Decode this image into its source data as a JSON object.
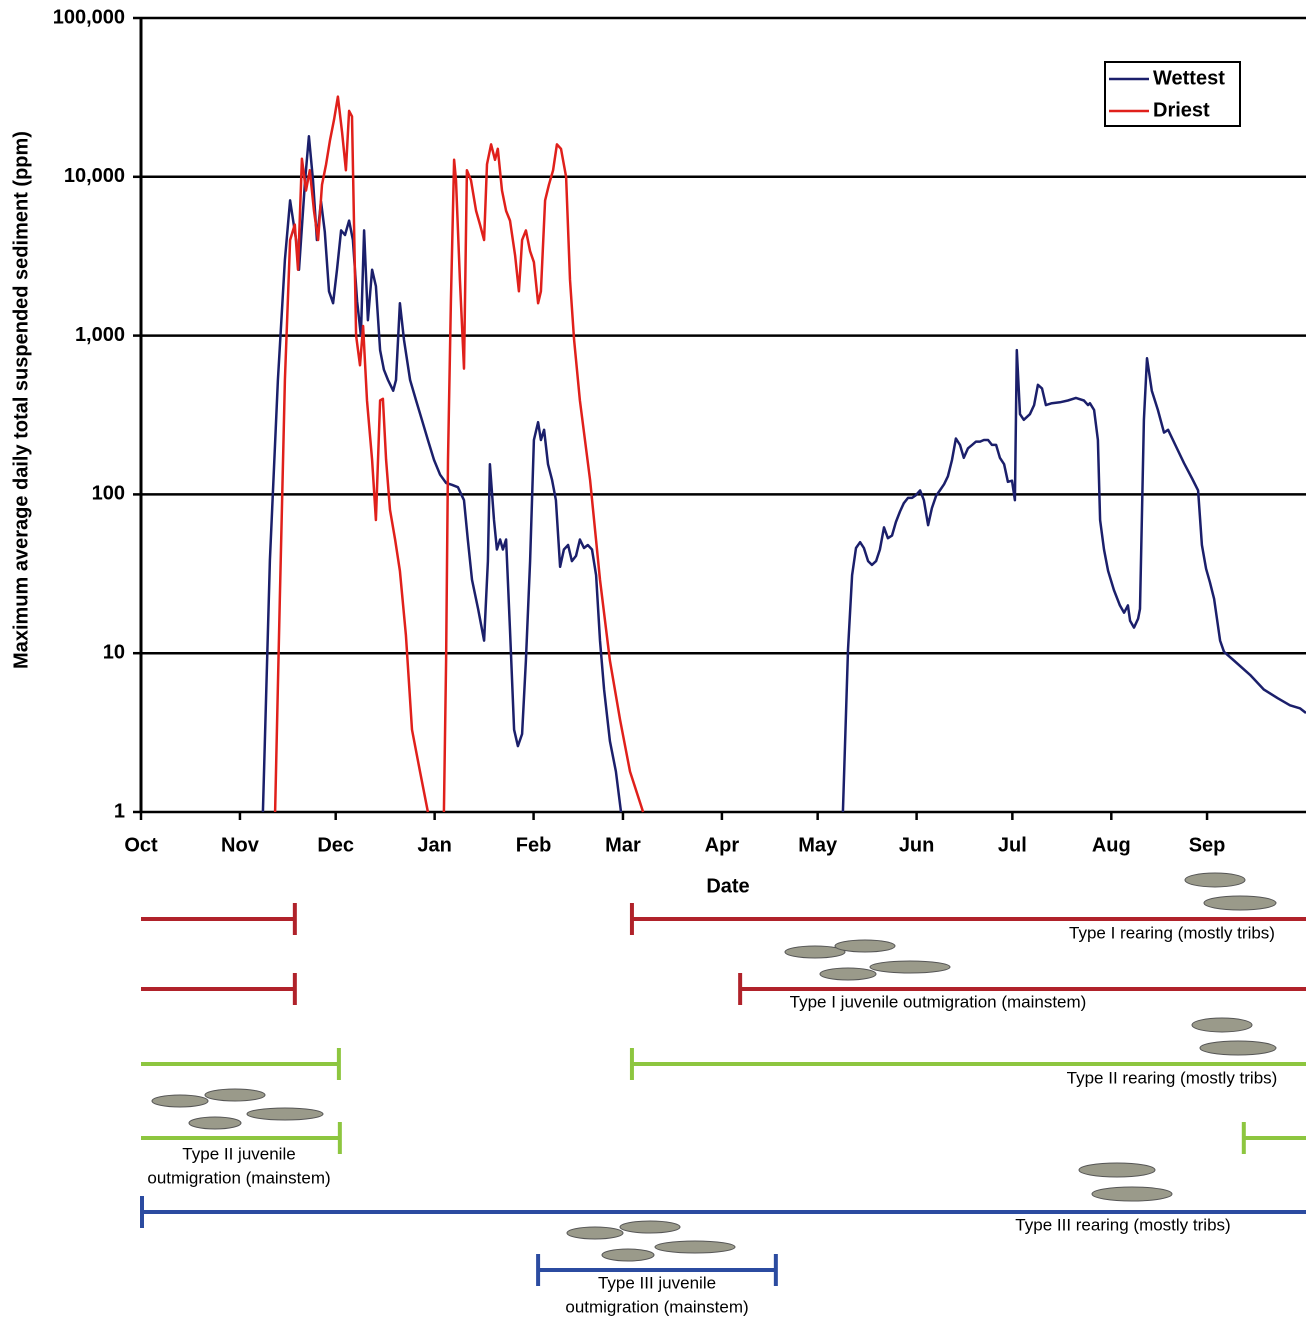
{
  "chart_data": {
    "type": "line",
    "y_label": "Maximum average daily total suspended sediment (ppm)",
    "x_label": "Date",
    "yscale": "log",
    "grid": true,
    "legend": "upper right",
    "xlim": [
      0,
      365
    ],
    "xticks": [
      {
        "value": 0,
        "label": "Oct"
      },
      {
        "value": 31,
        "label": "Nov"
      },
      {
        "value": 61,
        "label": "Dec"
      },
      {
        "value": 92,
        "label": "Jan"
      },
      {
        "value": 123,
        "label": "Feb"
      },
      {
        "value": 151,
        "label": "Mar"
      },
      {
        "value": 182,
        "label": "Apr"
      },
      {
        "value": 212,
        "label": "May"
      },
      {
        "value": 243,
        "label": "Jun"
      },
      {
        "value": 273,
        "label": "Jul"
      },
      {
        "value": 304,
        "label": "Aug"
      },
      {
        "value": 334,
        "label": "Sep"
      }
    ],
    "ylim": [
      1,
      100000
    ],
    "yticks": [
      {
        "value": 100000,
        "label": "100,000"
      },
      {
        "value": 10000,
        "label": "10,000"
      },
      {
        "value": 1000,
        "label": "1,000"
      },
      100,
      10,
      1
    ],
    "series": [
      {
        "name": "Wettest",
        "color": "#1b1f6b",
        "x": [
          38.2,
          40.4,
          42.9,
          45.1,
          46.7,
          48.6,
          49.5,
          51.4,
          52.6,
          53.9,
          55.1,
          56.4,
          57.6,
          58.9,
          60.2,
          61.4,
          62.7,
          63.9,
          65.2,
          66.4,
          67.7,
          68.9,
          69.9,
          71.1,
          72.4,
          73.6,
          74.9,
          76.1,
          77.4,
          79.0,
          79.9,
          81.1,
          82.4,
          84.3,
          86.2,
          88.0,
          89.9,
          91.8,
          93.7,
          95.6,
          97.4,
          99.3,
          101.2,
          102.4,
          103.7,
          105.6,
          107.5,
          108.7,
          109.3,
          110.6,
          111.5,
          112.5,
          113.4,
          114.4,
          115.6,
          116.9,
          118.1,
          119.4,
          120.6,
          121.9,
          123.1,
          124.4,
          125.3,
          126.3,
          127.5,
          128.8,
          130.0,
          131.3,
          132.5,
          133.8,
          135.0,
          136.3,
          137.5,
          138.8,
          140.0,
          141.3,
          142.6,
          143.8,
          145.1,
          146.9,
          148.8,
          150.4,
          185,
          219.9,
          221.5,
          222.8,
          224.0,
          225.3,
          226.5,
          227.8,
          229.0,
          230.3,
          231.5,
          232.8,
          234.0,
          235.3,
          236.5,
          237.8,
          239.0,
          240.3,
          241.6,
          242.8,
          244.1,
          245.3,
          246.6,
          247.8,
          249.1,
          250.3,
          251.6,
          252.8,
          254.1,
          255.3,
          256.6,
          257.8,
          259.1,
          260.4,
          261.6,
          262.9,
          264.1,
          265.4,
          266.6,
          267.9,
          269.1,
          270.4,
          271.6,
          272.9,
          273.8,
          274.4,
          275.4,
          276.6,
          278.5,
          279.8,
          281.0,
          282.3,
          283.5,
          285.4,
          287.9,
          290.4,
          292.9,
          295.4,
          296.7,
          297.3,
          298.6,
          299.8,
          300.5,
          301.7,
          303.0,
          304.8,
          306.7,
          308.0,
          309.2,
          309.9,
          311.1,
          312.4,
          313.0,
          314.2,
          315.2,
          316.7,
          318.6,
          320.5,
          321.8,
          324.3,
          326.8,
          329.3,
          331.2,
          332.4,
          333.7,
          334.9,
          336.2,
          338.1,
          339.3,
          342.4,
          347.5,
          351.8,
          356.2,
          360.0,
          363.1,
          365.0
        ],
        "values": [
          1,
          38.6,
          525,
          3000,
          7100,
          4000,
          2600,
          9500,
          18000,
          9500,
          4000,
          7000,
          4500,
          1900,
          1600,
          2600,
          4600,
          4300,
          5300,
          4000,
          1650,
          1000,
          4600,
          1250,
          2600,
          2050,
          810,
          610,
          525,
          450,
          525,
          1600,
          940,
          525,
          390,
          295,
          220,
          165,
          133,
          118,
          115,
          111,
          92,
          52,
          29,
          19,
          12,
          38,
          155,
          69,
          45,
          52,
          45,
          52,
          14,
          3.3,
          2.6,
          3.1,
          9,
          38,
          220,
          285,
          220,
          255,
          155,
          123,
          92,
          35,
          45,
          48,
          38,
          41,
          52,
          46,
          48,
          45,
          31,
          12,
          5.9,
          2.8,
          1.8,
          1,
          null,
          1,
          10.5,
          31,
          46,
          50,
          46,
          38,
          36,
          38,
          45,
          62,
          53,
          55,
          67,
          78,
          88,
          95,
          95,
          99,
          106,
          92,
          64,
          82,
          98,
          106,
          116,
          130,
          165,
          225,
          205,
          170,
          195,
          205,
          215,
          215,
          220,
          220,
          205,
          205,
          170,
          155,
          120,
          122,
          92,
          810,
          320,
          295,
          320,
          365,
          490,
          465,
          365,
          375,
          380,
          390,
          405,
          390,
          365,
          375,
          340,
          220,
          69,
          45,
          33,
          25,
          20,
          18,
          20,
          16,
          14.5,
          16.5,
          19,
          295,
          720,
          450,
          340,
          245,
          255,
          200,
          157,
          126,
          106,
          48,
          34,
          28,
          22,
          12,
          10.2,
          9,
          7.3,
          5.9,
          5.2,
          4.7,
          4.5,
          4.2
        ]
      },
      {
        "name": "Driest",
        "color": "#e0201b",
        "x": [
          42.0,
          43.5,
          45.1,
          46.7,
          48.2,
          49.2,
          50.4,
          51.7,
          52.9,
          54.2,
          55.5,
          56.7,
          58.0,
          59.2,
          60.5,
          61.7,
          63.0,
          64.2,
          65.2,
          66.1,
          67.4,
          68.6,
          69.6,
          70.8,
          72.4,
          73.6,
          74.9,
          75.8,
          76.8,
          78.0,
          79.6,
          81.1,
          83.0,
          84.9,
          87.4,
          89.9,
          90.9,
          94.9,
          95.6,
          96.2,
          97.1,
          98.1,
          98.7,
          99.9,
          101.2,
          102.1,
          103.4,
          105.0,
          106.2,
          107.5,
          108.4,
          109.7,
          110.9,
          111.8,
          113.1,
          114.4,
          115.6,
          117.2,
          118.4,
          119.4,
          120.6,
          121.9,
          123.1,
          124.4,
          125.3,
          126.6,
          127.8,
          129.1,
          130.3,
          131.6,
          133.2,
          134.4,
          135.7,
          137.5,
          140.7,
          143.8,
          146.9,
          150.1,
          153.2,
          157.3
        ],
        "values": [
          1,
          21.6,
          525,
          4000,
          5000,
          2600,
          13000,
          8200,
          11000,
          6100,
          4000,
          8900,
          12000,
          17000,
          23000,
          32000,
          19000,
          11000,
          26000,
          24000,
          1000,
          650,
          1150,
          390,
          165,
          69,
          390,
          400,
          165,
          80,
          52,
          33,
          13,
          3.3,
          1.8,
          1,
          null,
          1,
          9,
          165,
          1650,
          12800,
          9500,
          2250,
          620,
          11000,
          9500,
          6100,
          5000,
          4000,
          12000,
          16000,
          12800,
          15000,
          8200,
          6100,
          5300,
          3200,
          1900,
          4000,
          4600,
          3400,
          2900,
          1600,
          1900,
          7100,
          8900,
          11000,
          16000,
          15000,
          10000,
          2250,
          940,
          390,
          123,
          29,
          9,
          3.8,
          1.8,
          1
        ]
      }
    ]
  },
  "timeline": [
    {
      "label": [
        "Type I rearing (mostly tribs)"
      ],
      "color": "#b0222a",
      "periods": [
        [
          0,
          48.2
        ],
        [
          153.5,
          365
        ]
      ]
    },
    {
      "label": [
        "Type I juvenile outmigration (mainstem)"
      ],
      "color": "#b0222a",
      "periods": [
        [
          0,
          48.2
        ],
        [
          187.4,
          365
        ]
      ]
    },
    {
      "label": [
        "Type II rearing (mostly tribs)"
      ],
      "color": "#8dc63f",
      "periods": [
        [
          0,
          62.0
        ],
        [
          153.5,
          365
        ]
      ]
    },
    {
      "label": [
        "Type II juvenile",
        "outmigration (mainstem)"
      ],
      "color": "#8dc63f",
      "periods": [
        [
          0,
          62.3
        ],
        [
          345.2,
          365
        ]
      ]
    },
    {
      "label": [
        "Type III rearing (mostly tribs)"
      ],
      "color": "#2b4ba0",
      "periods": [
        [
          0,
          365
        ]
      ]
    },
    {
      "label": [
        "Type III juvenile",
        "outmigration (mainstem)"
      ],
      "color": "#2b4ba0",
      "periods": [
        [
          124.1,
          198.9
        ]
      ]
    }
  ]
}
